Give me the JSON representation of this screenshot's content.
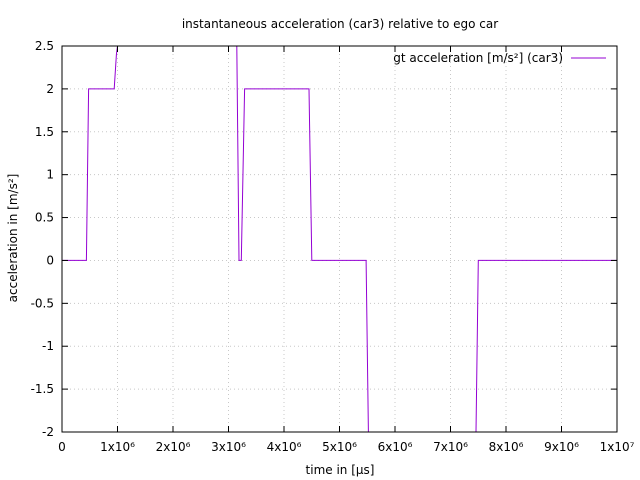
{
  "chart_data": {
    "type": "line",
    "title": "instantaneous acceleration (car3) relative to ego car",
    "xlabel": "time in [µs]",
    "ylabel": "acceleration in [m/s²]",
    "xlim": [
      0,
      10000000
    ],
    "ylim": [
      -2,
      2.5
    ],
    "grid": true,
    "legend_position": "top-right",
    "xticks": [
      {
        "value": 0,
        "label": "0"
      },
      {
        "value": 1000000,
        "label": "1x10⁶"
      },
      {
        "value": 2000000,
        "label": "2x10⁶"
      },
      {
        "value": 3000000,
        "label": "3x10⁶"
      },
      {
        "value": 4000000,
        "label": "4x10⁶"
      },
      {
        "value": 5000000,
        "label": "5x10⁶"
      },
      {
        "value": 6000000,
        "label": "6x10⁶"
      },
      {
        "value": 7000000,
        "label": "7x10⁶"
      },
      {
        "value": 8000000,
        "label": "8x10⁶"
      },
      {
        "value": 9000000,
        "label": "9x10⁶"
      },
      {
        "value": 10000000,
        "label": "1x10⁷"
      }
    ],
    "yticks": [
      {
        "value": 2.5,
        "label": "2.5"
      },
      {
        "value": 2,
        "label": "2"
      },
      {
        "value": 1.5,
        "label": "1.5"
      },
      {
        "value": 1,
        "label": "1"
      },
      {
        "value": 0.5,
        "label": "0.5"
      },
      {
        "value": 0,
        "label": "0"
      },
      {
        "value": -0.5,
        "label": "-0.5"
      },
      {
        "value": -1,
        "label": "-1"
      },
      {
        "value": -1.5,
        "label": "-1.5"
      },
      {
        "value": -2,
        "label": "-2"
      }
    ],
    "series": [
      {
        "name": "gt acceleration [m/s²] (car3)",
        "color": "#9400d3",
        "x": [
          0,
          440000,
          480000,
          940000,
          980000,
          1000000,
          3150000,
          3190000,
          3230000,
          3290000,
          3330000,
          4450000,
          4500000,
          5480000,
          5520000,
          7460000,
          7500000,
          10000000
        ],
        "y": [
          0,
          0,
          2,
          2,
          2.4,
          2.5,
          2.5,
          0,
          0,
          2,
          2,
          2,
          0,
          0,
          -2,
          -2,
          0,
          0
        ]
      }
    ]
  }
}
